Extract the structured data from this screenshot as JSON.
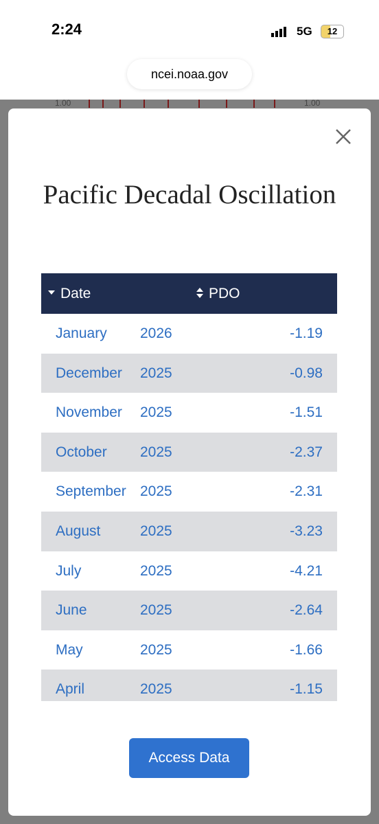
{
  "status_bar": {
    "time": "2:24",
    "network": "5G",
    "battery": "12"
  },
  "browser": {
    "url": "ncei.noaa.gov"
  },
  "background_chart": {
    "left_tick": "1.00",
    "right_tick": "1.00"
  },
  "modal": {
    "title": "Pacific Decadal Oscillation",
    "table": {
      "headers": [
        "Date",
        "PDO"
      ],
      "rows": [
        [
          "January",
          2026,
          -1.19
        ],
        [
          "December",
          2025,
          -0.98
        ],
        [
          "November",
          2025,
          -1.51
        ],
        [
          "October",
          2025,
          -2.37
        ],
        [
          "September",
          2025,
          -2.31
        ],
        [
          "August",
          2025,
          -3.23
        ],
        [
          "July",
          2025,
          -4.21
        ],
        [
          "June",
          2025,
          -2.64
        ],
        [
          "May",
          2025,
          -1.66
        ],
        [
          "April",
          2025,
          -1.15
        ]
      ]
    },
    "button": "Access Data"
  }
}
